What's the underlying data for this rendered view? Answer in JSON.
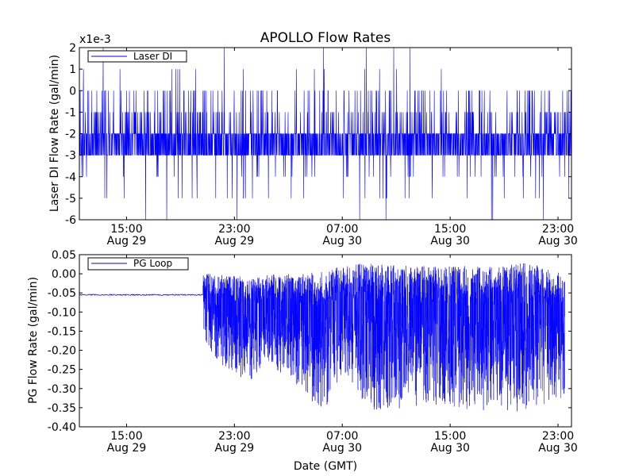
{
  "figure": {
    "title": "APOLLO Flow Rates",
    "xlabel": "Date (GMT)",
    "line_color": "#0000ff"
  },
  "chart_data": [
    {
      "type": "line",
      "ylabel": "Laser DI Flow Rate (gal/min)",
      "offset_label": "x1e-3",
      "y_scale_factor": 0.001,
      "ylim": [
        -6,
        2
      ],
      "yticks": [
        2,
        1,
        0,
        -1,
        -2,
        -3,
        -4,
        -5,
        -6
      ],
      "ytick_labels": [
        "2",
        "1",
        "0",
        "-1",
        "-2",
        "-3",
        "-4",
        "-5",
        "-6"
      ],
      "xlim": [
        "2011-08-29 11:30",
        "2011-08-31 00:00"
      ],
      "xticks": [
        {
          "time": "Aug 29 15:00",
          "line1": "15:00",
          "line2": "Aug 29"
        },
        {
          "time": "Aug 29 23:00",
          "line1": "23:00",
          "line2": "Aug 29"
        },
        {
          "time": "Aug 30 07:00",
          "line1": "07:00",
          "line2": "Aug 30"
        },
        {
          "time": "Aug 30 15:00",
          "line1": "15:00",
          "line2": "Aug 30"
        },
        {
          "time": "Aug 30 23:00",
          "line1": "23:00",
          "line2": "Aug 30"
        }
      ],
      "legend": {
        "entry": "Laser DI",
        "placement": "upper-left"
      },
      "grid": false,
      "series": [
        {
          "name": "Laser DI",
          "description_range": "mostly alternates between -2 and -3 (x1e-3), frequent spikes to 0 and -1, occasional to 1 and 2, dips to -4 / -5 / -6",
          "baseline_band": [
            -3,
            -2
          ],
          "spike_levels": [
            0,
            -1,
            1,
            2,
            -4,
            -5,
            -6
          ]
        }
      ]
    },
    {
      "type": "line",
      "ylabel": "PG Flow Rate (gal/min)",
      "ylim": [
        -0.4,
        0.05
      ],
      "yticks": [
        0.05,
        0.0,
        -0.05,
        -0.1,
        -0.15,
        -0.2,
        -0.25,
        -0.3,
        -0.35,
        -0.4
      ],
      "ytick_labels": [
        "0.05",
        "0.00",
        "-0.05",
        "-0.10",
        "-0.15",
        "-0.20",
        "-0.25",
        "-0.30",
        "-0.35",
        "-0.40"
      ],
      "xlim": [
        "2011-08-29 11:30",
        "2011-08-31 00:00"
      ],
      "xticks": [
        {
          "time": "Aug 29 15:00",
          "line1": "15:00",
          "line2": "Aug 29"
        },
        {
          "time": "Aug 29 23:00",
          "line1": "23:00",
          "line2": "Aug 29"
        },
        {
          "time": "Aug 30 07:00",
          "line1": "07:00",
          "line2": "Aug 30"
        },
        {
          "time": "Aug 30 15:00",
          "line1": "15:00",
          "line2": "Aug 30"
        },
        {
          "time": "Aug 30 23:00",
          "line1": "23:00",
          "line2": "Aug 30"
        }
      ],
      "legend": {
        "entry": "PG Loop",
        "placement": "upper-left"
      },
      "grid": false,
      "series": [
        {
          "name": "PG Loop",
          "flat_segment": {
            "from": "Aug 29 11:30",
            "to": "Aug 29 20:40",
            "value": -0.055
          },
          "noisy_envelope": [
            {
              "t": "Aug 29 20:40",
              "lo": -0.17,
              "hi": 0.0
            },
            {
              "t": "Aug 29 22:00",
              "lo": -0.24,
              "hi": 0.0
            },
            {
              "t": "Aug 30 00:00",
              "lo": -0.28,
              "hi": -0.01
            },
            {
              "t": "Aug 30 02:00",
              "lo": -0.25,
              "hi": 0.0
            },
            {
              "t": "Aug 30 04:00",
              "lo": -0.3,
              "hi": 0.0
            },
            {
              "t": "Aug 30 05:30",
              "lo": -0.37,
              "hi": 0.01
            },
            {
              "t": "Aug 30 07:00",
              "lo": -0.26,
              "hi": 0.02
            },
            {
              "t": "Aug 30 09:00",
              "lo": -0.36,
              "hi": 0.03
            },
            {
              "t": "Aug 30 12:00",
              "lo": -0.35,
              "hi": 0.02
            },
            {
              "t": "Aug 30 15:00",
              "lo": -0.35,
              "hi": 0.02
            },
            {
              "t": "Aug 30 18:00",
              "lo": -0.36,
              "hi": 0.02
            },
            {
              "t": "Aug 30 21:00",
              "lo": -0.36,
              "hi": 0.03
            },
            {
              "t": "Aug 30 23:30",
              "lo": -0.32,
              "hi": 0.0
            }
          ]
        }
      ]
    }
  ]
}
